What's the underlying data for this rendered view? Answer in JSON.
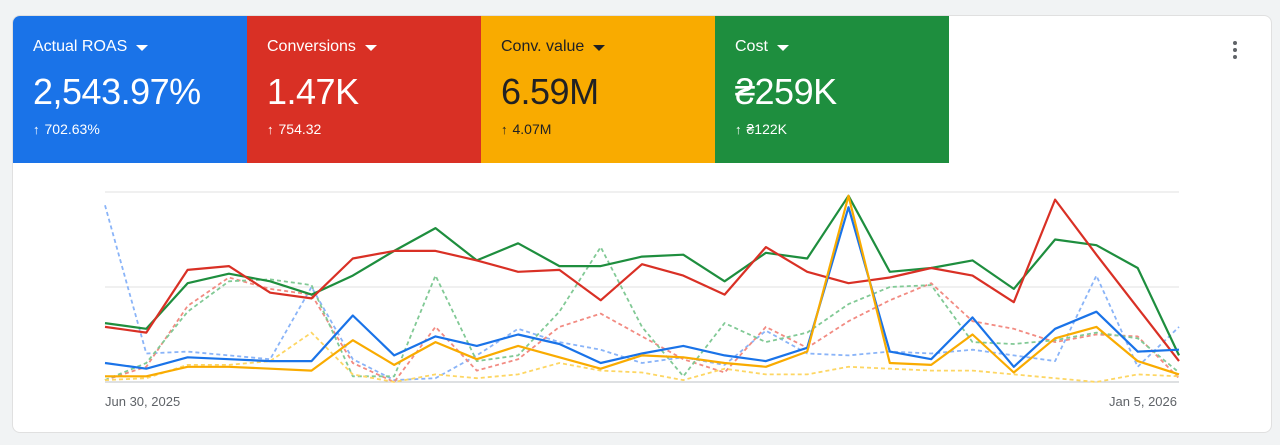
{
  "tiles": [
    {
      "label": "Actual ROAS",
      "value": "2,543.97%",
      "delta": "702.63%",
      "color": "#1a73e8"
    },
    {
      "label": "Conversions",
      "value": "1.47K",
      "delta": "754.32",
      "color": "#d93025"
    },
    {
      "label": "Conv. value",
      "value": "6.59M",
      "delta": "4.07M",
      "color": "#f9ab00"
    },
    {
      "label": "Cost",
      "value": "₴259K",
      "delta": "₴122K",
      "color": "#1e8e3e"
    }
  ],
  "more_menu_icon": "more-vert-icon",
  "x_axis": {
    "start": "Jun 30, 2025",
    "end": "Jan 5, 2026"
  },
  "chart_data": {
    "type": "line",
    "x_start": "Jun 30, 2025",
    "x_end": "Jan 5, 2026",
    "grid": true,
    "y_range": [
      0,
      100
    ],
    "series": [
      {
        "color": "#1e8e3e",
        "dashed": false,
        "values": [
          31,
          28,
          52,
          57,
          53,
          46,
          56,
          69,
          81,
          64,
          73,
          61,
          61,
          66,
          67,
          53,
          68,
          65,
          98,
          58,
          60,
          64,
          49,
          75,
          72,
          60,
          14
        ]
      },
      {
        "color": "#d93025",
        "dashed": false,
        "values": [
          29,
          26,
          59,
          61,
          47,
          44,
          65,
          69,
          69,
          64,
          58,
          59,
          43,
          62,
          56,
          46,
          71,
          58,
          52,
          55,
          60,
          56,
          42,
          96,
          67,
          39,
          11
        ]
      },
      {
        "color": "#1a73e8",
        "dashed": false,
        "values": [
          10,
          7,
          13,
          12,
          11,
          11,
          35,
          14,
          24,
          19,
          25,
          20,
          10,
          15,
          19,
          14,
          11,
          18,
          92,
          16,
          12,
          34,
          8,
          28,
          37,
          16,
          17
        ]
      },
      {
        "color": "#f9ab00",
        "dashed": false,
        "values": [
          3,
          3,
          8,
          8,
          7,
          6,
          22,
          9,
          21,
          12,
          19,
          13,
          7,
          14,
          13,
          10,
          8,
          16,
          98,
          10,
          9,
          25,
          5,
          23,
          29,
          11,
          4
        ]
      },
      {
        "color": "#8ab4f8",
        "dashed": true,
        "values": [
          93,
          15,
          16,
          14,
          12,
          50,
          12,
          1,
          2,
          14,
          28,
          21,
          17,
          10,
          13,
          9,
          27,
          15,
          14,
          16,
          15,
          17,
          14,
          11,
          56,
          8,
          29
        ]
      },
      {
        "color": "#f28b82",
        "dashed": true,
        "values": [
          1,
          8,
          40,
          55,
          49,
          46,
          10,
          0,
          29,
          6,
          12,
          29,
          36,
          24,
          12,
          5,
          29,
          18,
          32,
          43,
          52,
          32,
          28,
          21,
          25,
          24,
          2
        ]
      },
      {
        "color": "#81c995",
        "dashed": true,
        "values": [
          1,
          10,
          37,
          53,
          54,
          51,
          3,
          3,
          56,
          11,
          14,
          37,
          71,
          29,
          3,
          31,
          21,
          26,
          41,
          50,
          51,
          21,
          20,
          22,
          26,
          23,
          5
        ]
      },
      {
        "color": "#fdd663",
        "dashed": true,
        "values": [
          1,
          2,
          9,
          9,
          11,
          26,
          4,
          0,
          4,
          2,
          4,
          10,
          6,
          5,
          1,
          7,
          4,
          4,
          8,
          7,
          6,
          6,
          4,
          2,
          0,
          4,
          3
        ]
      }
    ]
  }
}
